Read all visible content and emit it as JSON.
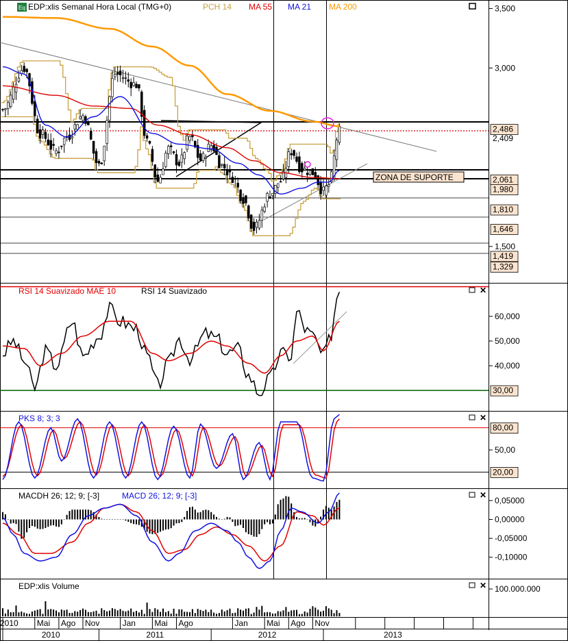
{
  "colors": {
    "black": "#000000",
    "red": "#e00000",
    "blue": "#1010e0",
    "orange": "#ff9900",
    "gold": "#c8a040",
    "green": "#006000",
    "label_bg": "#fbe4cf",
    "zone_bg": "#fbe4cf",
    "grid": "#c8c8c8"
  },
  "chart_data": [
    {
      "type": "line",
      "legend": {
        "instrument": "EDP:xlis Semanal Hora Local (TMG+0)",
        "pch": "PCH 14",
        "ma55": "MA 55",
        "ma21": "MA 21",
        "ma200": "MA 200"
      },
      "ylim": [
        1200,
        3560
      ],
      "yticks": [
        {
          "value": 3500,
          "label": "3,500"
        },
        {
          "value": 3000,
          "label": "3,000"
        },
        {
          "value": 1500,
          "label": "1,500"
        }
      ],
      "level_labels": [
        {
          "value": 2486,
          "label": "2,486",
          "boxed": true
        },
        {
          "value": 2409,
          "label": "2,409",
          "boxed": false
        },
        {
          "value": 2061,
          "label": "2,061",
          "boxed": true
        },
        {
          "value": 1980,
          "label": "1,980",
          "boxed": true
        },
        {
          "value": 1810,
          "label": "1,810",
          "boxed": true
        },
        {
          "value": 1646,
          "label": "1,646",
          "boxed": true
        },
        {
          "value": 1419,
          "label": "1,419",
          "boxed": true
        },
        {
          "value": 1329,
          "label": "1,329",
          "boxed": true
        }
      ],
      "annotation": "ZONA DE SUPORTE",
      "close_keypoints": [
        [
          0,
          2650
        ],
        [
          8,
          3000
        ],
        [
          14,
          2450
        ],
        [
          20,
          2300
        ],
        [
          24,
          2420
        ],
        [
          30,
          2600
        ],
        [
          36,
          2180
        ],
        [
          42,
          2950
        ],
        [
          50,
          2860
        ],
        [
          54,
          2380
        ],
        [
          58,
          2050
        ],
        [
          62,
          2320
        ],
        [
          66,
          2200
        ],
        [
          70,
          2420
        ],
        [
          74,
          2230
        ],
        [
          78,
          2350
        ],
        [
          82,
          2180
        ],
        [
          86,
          2080
        ],
        [
          90,
          1900
        ],
        [
          94,
          1650
        ],
        [
          100,
          1940
        ],
        [
          104,
          2050
        ],
        [
          108,
          2300
        ],
        [
          112,
          2150
        ],
        [
          116,
          2120
        ],
        [
          120,
          1960
        ],
        [
          122,
          2020
        ],
        [
          126,
          2470
        ]
      ],
      "ma200_keypoints": [
        [
          0,
          3430
        ],
        [
          20,
          3420
        ],
        [
          40,
          3330
        ],
        [
          56,
          3180
        ],
        [
          70,
          3020
        ],
        [
          84,
          2780
        ],
        [
          100,
          2640
        ],
        [
          116,
          2550
        ],
        [
          126,
          2510
        ]
      ],
      "ma55_keypoints": [
        [
          0,
          2850
        ],
        [
          20,
          2770
        ],
        [
          34,
          2680
        ],
        [
          48,
          2660
        ],
        [
          58,
          2520
        ],
        [
          70,
          2440
        ],
        [
          84,
          2330
        ],
        [
          94,
          2220
        ],
        [
          104,
          2120
        ],
        [
          116,
          2080
        ],
        [
          126,
          2070
        ]
      ],
      "ma21_keypoints": [
        [
          0,
          3010
        ],
        [
          8,
          2950
        ],
        [
          16,
          2520
        ],
        [
          24,
          2420
        ],
        [
          34,
          2590
        ],
        [
          44,
          2760
        ],
        [
          56,
          2450
        ],
        [
          66,
          2360
        ],
        [
          78,
          2320
        ],
        [
          88,
          2200
        ],
        [
          96,
          2100
        ],
        [
          104,
          1940
        ],
        [
          112,
          1990
        ],
        [
          118,
          2040
        ],
        [
          122,
          2040
        ],
        [
          126,
          2140
        ]
      ]
    },
    {
      "type": "line",
      "legend": {
        "smooth_mae": "RSI 14 Suavizado MAE 10",
        "rsi": "RSI 14 Suavizado"
      },
      "ylim": [
        22,
        73
      ],
      "yticks": [
        {
          "value": 60,
          "label": "60,000"
        },
        {
          "value": 50,
          "label": "50,000"
        },
        {
          "value": 40,
          "label": "40,000"
        }
      ],
      "level": {
        "value": 30,
        "label": "30,00"
      },
      "top_line": 72,
      "rsi_keypoints": [
        [
          0,
          45
        ],
        [
          4,
          50
        ],
        [
          8,
          42
        ],
        [
          12,
          31
        ],
        [
          16,
          46
        ],
        [
          20,
          40
        ],
        [
          26,
          58
        ],
        [
          30,
          44
        ],
        [
          36,
          52
        ],
        [
          40,
          63
        ],
        [
          44,
          58
        ],
        [
          50,
          55
        ],
        [
          54,
          44
        ],
        [
          58,
          32
        ],
        [
          62,
          41
        ],
        [
          66,
          51
        ],
        [
          70,
          43
        ],
        [
          76,
          53
        ],
        [
          80,
          51
        ],
        [
          84,
          45
        ],
        [
          88,
          47
        ],
        [
          92,
          36
        ],
        [
          96,
          29
        ],
        [
          100,
          35
        ],
        [
          104,
          45
        ],
        [
          108,
          44
        ],
        [
          110,
          62
        ],
        [
          114,
          54
        ],
        [
          116,
          52
        ],
        [
          120,
          44
        ],
        [
          122,
          50
        ],
        [
          126,
          71
        ]
      ],
      "smooth_keypoints": [
        [
          0,
          48
        ],
        [
          8,
          47
        ],
        [
          14,
          40
        ],
        [
          22,
          45
        ],
        [
          30,
          52
        ],
        [
          40,
          58
        ],
        [
          48,
          58
        ],
        [
          56,
          45
        ],
        [
          62,
          42
        ],
        [
          70,
          45
        ],
        [
          78,
          50
        ],
        [
          84,
          48
        ],
        [
          92,
          41
        ],
        [
          98,
          37
        ],
        [
          104,
          44
        ],
        [
          110,
          50
        ],
        [
          116,
          52
        ],
        [
          120,
          46
        ],
        [
          126,
          58
        ]
      ]
    },
    {
      "type": "line",
      "legend": {
        "pks": "PKS 8; 3; 3"
      },
      "ylim": [
        0,
        100
      ],
      "yticks": [
        {
          "value": 50,
          "label": "50,00"
        }
      ],
      "levels": [
        {
          "value": 80,
          "label": "80,00"
        },
        {
          "value": 20,
          "label": "20,00"
        }
      ],
      "k_keypoints": [
        [
          0,
          10
        ],
        [
          6,
          88
        ],
        [
          12,
          12
        ],
        [
          18,
          80
        ],
        [
          22,
          35
        ],
        [
          28,
          92
        ],
        [
          34,
          12
        ],
        [
          40,
          88
        ],
        [
          46,
          12
        ],
        [
          52,
          88
        ],
        [
          58,
          10
        ],
        [
          64,
          82
        ],
        [
          70,
          12
        ],
        [
          74,
          85
        ],
        [
          80,
          25
        ],
        [
          86,
          72
        ],
        [
          90,
          10
        ],
        [
          96,
          60
        ],
        [
          100,
          10
        ],
        [
          104,
          88
        ],
        [
          110,
          88
        ],
        [
          116,
          12
        ],
        [
          120,
          8
        ],
        [
          124,
          92
        ],
        [
          126,
          98
        ]
      ],
      "d_keypoints": [
        [
          0,
          14
        ],
        [
          7,
          84
        ],
        [
          13,
          15
        ],
        [
          19,
          77
        ],
        [
          23,
          38
        ],
        [
          29,
          88
        ],
        [
          35,
          16
        ],
        [
          41,
          84
        ],
        [
          47,
          15
        ],
        [
          53,
          84
        ],
        [
          59,
          14
        ],
        [
          65,
          78
        ],
        [
          71,
          15
        ],
        [
          75,
          81
        ],
        [
          81,
          28
        ],
        [
          87,
          68
        ],
        [
          91,
          14
        ],
        [
          97,
          56
        ],
        [
          101,
          14
        ],
        [
          105,
          84
        ],
        [
          111,
          84
        ],
        [
          117,
          16
        ],
        [
          121,
          12
        ],
        [
          125,
          88
        ],
        [
          126,
          92
        ]
      ]
    },
    {
      "type": "bar",
      "legend": {
        "macdh": "MACDH 26; 12; 9; [-3]",
        "macd": "MACD 26; 12; 9; [-3]"
      },
      "ylim": [
        -0.155,
        0.077
      ],
      "yticks": [
        {
          "value": 0.05,
          "label": "0,05000"
        },
        {
          "value": 0.0,
          "label": "0,00000"
        },
        {
          "value": -0.05,
          "label": "-0,05000"
        },
        {
          "value": -0.1,
          "label": "-0,10000"
        }
      ],
      "macd_keypoints": [
        [
          0,
          0.005
        ],
        [
          4,
          -0.04
        ],
        [
          8,
          -0.09
        ],
        [
          14,
          -0.11
        ],
        [
          20,
          -0.1
        ],
        [
          26,
          -0.04
        ],
        [
          32,
          0.01
        ],
        [
          38,
          0.03
        ],
        [
          44,
          0.04
        ],
        [
          50,
          0.01
        ],
        [
          56,
          -0.06
        ],
        [
          62,
          -0.11
        ],
        [
          66,
          -0.09
        ],
        [
          72,
          -0.03
        ],
        [
          78,
          -0.01
        ],
        [
          84,
          -0.03
        ],
        [
          88,
          -0.06
        ],
        [
          92,
          -0.1
        ],
        [
          96,
          -0.13
        ],
        [
          100,
          -0.11
        ],
        [
          104,
          -0.03
        ],
        [
          108,
          0.03
        ],
        [
          112,
          0.02
        ],
        [
          118,
          -0.01
        ],
        [
          122,
          0.02
        ],
        [
          126,
          0.07
        ]
      ],
      "signal_keypoints": [
        [
          0,
          -0.01
        ],
        [
          6,
          -0.04
        ],
        [
          12,
          -0.09
        ],
        [
          18,
          -0.09
        ],
        [
          26,
          -0.06
        ],
        [
          32,
          -0.01
        ],
        [
          38,
          0.03
        ],
        [
          44,
          0.04
        ],
        [
          50,
          0.02
        ],
        [
          56,
          -0.03
        ],
        [
          62,
          -0.09
        ],
        [
          68,
          -0.08
        ],
        [
          74,
          -0.04
        ],
        [
          80,
          -0.02
        ],
        [
          86,
          -0.04
        ],
        [
          92,
          -0.07
        ],
        [
          98,
          -0.11
        ],
        [
          104,
          -0.07
        ],
        [
          110,
          0.02
        ],
        [
          116,
          0.01
        ],
        [
          120,
          -0.015
        ],
        [
          126,
          0.03
        ]
      ]
    },
    {
      "type": "bar",
      "legend": {
        "volume": "EDP:xlis Volume"
      },
      "yticks": [
        {
          "value": 100000000,
          "label": "100.000.000"
        }
      ],
      "ylim": [
        0,
        130000000
      ]
    }
  ],
  "x_axis": {
    "month_labels": [
      {
        "week": 0,
        "label": "2010"
      },
      {
        "week": 12,
        "label": "Mai"
      },
      {
        "week": 21,
        "label": "Ago"
      },
      {
        "week": 30,
        "label": "Nov"
      },
      {
        "week": 44,
        "label": "Jan"
      },
      {
        "week": 56,
        "label": "Mai"
      },
      {
        "week": 65,
        "label": "Ago"
      },
      {
        "week": 86,
        "label": "Jan"
      },
      {
        "week": 98,
        "label": "Mai"
      },
      {
        "week": 107,
        "label": "Ago"
      },
      {
        "week": 116,
        "label": "Nov"
      }
    ],
    "year_labels": [
      {
        "from": 0,
        "to": 36,
        "label": "2010"
      },
      {
        "from": 36,
        "to": 78,
        "label": "2011"
      },
      {
        "from": 78,
        "to": 120,
        "label": "2012"
      },
      {
        "from": 120,
        "to": 172,
        "label": "2013"
      }
    ]
  }
}
